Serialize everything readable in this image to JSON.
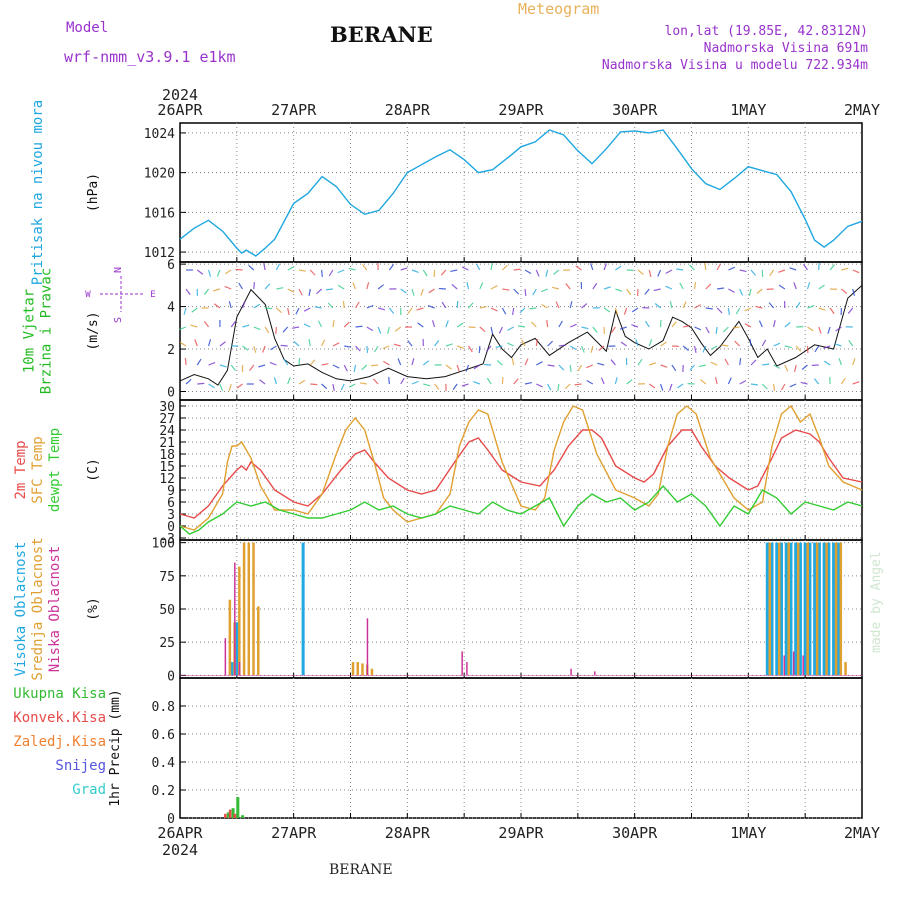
{
  "header": {
    "model_label": "Model",
    "model_name": "wrf-nmm_v3.9.1  e1km",
    "station": "BERANE",
    "meteogram": "Meteogram",
    "lonlat": "lon,lat (19.85E, 42.8312N)",
    "altitude": "Nadmorska Visina 691m",
    "altitude_model": "Nadmorska Visina u modelu 722.934m"
  },
  "footer": {
    "station": "BERANE"
  },
  "credit": "made by Angel",
  "time_axis": {
    "year": "2024",
    "labels": [
      "26APR",
      "27APR",
      "28APR",
      "29APR",
      "30APR",
      "1MAY",
      "2MAY"
    ]
  },
  "compass": {
    "n": "N",
    "s": "S",
    "w": "W",
    "e": "E"
  },
  "colors": {
    "pressure": "#1ea7e0",
    "wind_label": "#22bb22",
    "temp2m": "#e84a4a",
    "sfc": "#e0a030",
    "dew": "#33cc33",
    "cloud_high": "#22a8e0",
    "cloud_mid": "#e0a030",
    "cloud_low": "#cc3399",
    "precip_total": "#33bb33",
    "precip_conv": "#e84a4a",
    "precip_frozen": "#f08030",
    "snow": "#5555dd",
    "grad": "#33cccc",
    "wind_line": "#111111"
  },
  "chart_data": [
    {
      "type": "line",
      "panel": "pressure",
      "ylabel_lines": [
        "Pritisak na nivou mora"
      ],
      "unit": "(hPa)",
      "xlim": [
        0,
        144
      ],
      "ylim": [
        1011,
        1025
      ],
      "yticks": [
        1012,
        1016,
        1020,
        1024
      ],
      "series": [
        {
          "x": [
            0,
            3,
            6,
            9,
            12,
            13,
            14,
            16,
            18,
            20,
            24,
            27,
            30,
            33,
            36,
            39,
            42,
            45,
            48,
            51,
            54,
            57,
            60,
            63,
            66,
            70,
            72,
            75,
            78,
            81,
            84,
            87,
            90,
            93,
            96,
            99,
            102,
            105,
            108,
            111,
            114,
            117,
            120,
            123,
            126,
            129,
            132,
            134,
            136,
            138,
            141,
            144
          ],
          "y": [
            1013.3,
            1014.4,
            1015.2,
            1014.1,
            1012.4,
            1011.9,
            1012.2,
            1011.6,
            1012.4,
            1013.3,
            1016.9,
            1017.9,
            1019.6,
            1018.6,
            1016.8,
            1015.8,
            1016.2,
            1017.9,
            1020.0,
            1020.8,
            1021.6,
            1022.3,
            1021.3,
            1020.0,
            1020.3,
            1021.8,
            1022.6,
            1023.1,
            1024.3,
            1023.8,
            1022.2,
            1020.9,
            1022.4,
            1024.1,
            1024.2,
            1024.0,
            1024.3,
            1022.4,
            1020.4,
            1018.9,
            1018.3,
            1019.4,
            1020.6,
            1020.2,
            1019.8,
            1018.1,
            1015.3,
            1013.2,
            1012.5,
            1013.2,
            1014.6,
            1015.1
          ]
        }
      ]
    },
    {
      "type": "line",
      "panel": "wind",
      "ylabel_lines": [
        "10m Vjetar",
        "Brzina i Pravac"
      ],
      "unit": "(m/s)",
      "xlim": [
        0,
        144
      ],
      "ylim": [
        -0.4,
        6.1
      ],
      "yticks": [
        0,
        2,
        4,
        6
      ],
      "series": [
        {
          "x": [
            0,
            3,
            6,
            8,
            10,
            12,
            15,
            18,
            20,
            22,
            24,
            27,
            30,
            33,
            36,
            40,
            44,
            48,
            52,
            56,
            60,
            64,
            66,
            68,
            70,
            72,
            75,
            78,
            82,
            86,
            90,
            92,
            94,
            96,
            99,
            102,
            104,
            106,
            108,
            110,
            112,
            114,
            116,
            118,
            120,
            122,
            124,
            126,
            130,
            134,
            138,
            141,
            144
          ],
          "y": [
            0.5,
            0.8,
            0.6,
            0.3,
            1.0,
            3.5,
            4.8,
            4.1,
            2.5,
            1.5,
            1.2,
            1.3,
            0.9,
            0.6,
            0.5,
            0.7,
            1.1,
            0.7,
            0.6,
            0.7,
            1.0,
            1.3,
            2.7,
            2.0,
            1.6,
            2.2,
            2.5,
            1.7,
            2.3,
            2.8,
            1.9,
            3.8,
            2.6,
            2.3,
            2.0,
            2.4,
            3.5,
            3.3,
            3.0,
            2.3,
            1.7,
            2.1,
            2.7,
            3.3,
            2.5,
            1.6,
            2.0,
            1.2,
            1.6,
            2.2,
            2.0,
            4.4,
            5.0
          ]
        }
      ]
    },
    {
      "type": "line",
      "panel": "temperature",
      "ylabel_lines": [
        "2m Temp",
        "SFC Temp",
        "dewpt Temp"
      ],
      "unit": "(C)",
      "xlim": [
        0,
        144
      ],
      "ylim": [
        -3.5,
        31.5
      ],
      "yticks": [
        -3,
        0,
        3,
        6,
        9,
        12,
        15,
        18,
        21,
        24,
        27,
        30
      ],
      "series": [
        {
          "name": "2m Temp",
          "x": [
            0,
            3,
            6,
            9,
            12,
            13,
            14,
            15,
            17,
            20,
            24,
            27,
            30,
            34,
            37,
            39,
            41,
            44,
            48,
            51,
            54,
            58,
            61,
            63,
            65,
            68,
            72,
            76,
            79,
            82,
            85,
            87,
            89,
            92,
            96,
            98,
            100,
            103,
            106,
            108,
            110,
            113,
            116,
            120,
            122,
            125,
            127,
            130,
            133,
            135,
            137,
            140,
            144
          ],
          "y": [
            3,
            2,
            5,
            10,
            14,
            15,
            14,
            16,
            14,
            9,
            6,
            5,
            8,
            14,
            18,
            19,
            16,
            12,
            9,
            8,
            9,
            16,
            21,
            22,
            19,
            14,
            11,
            10,
            14,
            20,
            24,
            24,
            22,
            15,
            12,
            11,
            13,
            20,
            24,
            24,
            20,
            15,
            12,
            9,
            10,
            17,
            22,
            24,
            23,
            21,
            17,
            12,
            11
          ]
        },
        {
          "name": "SFC Temp",
          "x": [
            0,
            3,
            6,
            9,
            10,
            11,
            12,
            13,
            15,
            17,
            20,
            24,
            27,
            30,
            33,
            35,
            37,
            39,
            41,
            43,
            45,
            48,
            51,
            54,
            57,
            59,
            61,
            63,
            65,
            68,
            72,
            75,
            77,
            79,
            81,
            83,
            85,
            88,
            92,
            96,
            99,
            101,
            103,
            105,
            107,
            109,
            112,
            117,
            120,
            123,
            125,
            127,
            129,
            131,
            133,
            135,
            137,
            140,
            144
          ],
          "y": [
            0,
            -1,
            2,
            8,
            16,
            20,
            20,
            21,
            17,
            10,
            4,
            4,
            3,
            8,
            18,
            24,
            27,
            24,
            16,
            7,
            4,
            1,
            2,
            3,
            8,
            20,
            26,
            29,
            28,
            16,
            5,
            4,
            7,
            19,
            26,
            30,
            29,
            18,
            9,
            7,
            5,
            8,
            20,
            28,
            30,
            28,
            17,
            7,
            4,
            6,
            20,
            28,
            30,
            26,
            28,
            22,
            15,
            11,
            9
          ]
        },
        {
          "name": "dewpt Temp",
          "x": [
            0,
            2,
            4,
            6,
            9,
            12,
            15,
            18,
            21,
            24,
            27,
            30,
            33,
            36,
            39,
            42,
            45,
            48,
            51,
            54,
            57,
            60,
            63,
            66,
            69,
            72,
            75,
            78,
            81,
            84,
            87,
            90,
            93,
            96,
            99,
            102,
            105,
            108,
            111,
            114,
            117,
            120,
            123,
            126,
            129,
            132,
            135,
            138,
            141,
            144
          ],
          "y": [
            0,
            -2,
            -1,
            1,
            3,
            6,
            5,
            6,
            4,
            3,
            2,
            2,
            3,
            4,
            6,
            4,
            5,
            3,
            2,
            3,
            5,
            4,
            3,
            6,
            4,
            3,
            5,
            7,
            0,
            5,
            8,
            6,
            7,
            4,
            6,
            10,
            6,
            8,
            5,
            0,
            5,
            3,
            9,
            7,
            3,
            6,
            5,
            4,
            6,
            5
          ]
        }
      ]
    },
    {
      "type": "bar",
      "panel": "clouds",
      "ylabel_lines": [
        "Visoka Oblacnost",
        "Srednja Oblacnost",
        "Niska Oblacnost"
      ],
      "unit": "(%)",
      "xlim": [
        0,
        144
      ],
      "ylim": [
        -2,
        102
      ],
      "yticks": [
        0,
        25,
        50,
        75,
        100
      ],
      "series": [
        {
          "name": "Visoka Oblacnost",
          "x": [
            11,
            12,
            26,
            124,
            125,
            126,
            127,
            128,
            129,
            130,
            131,
            132,
            133,
            134,
            135,
            136,
            137,
            138,
            139
          ],
          "y": [
            10,
            40,
            100,
            100,
            100,
            100,
            100,
            100,
            100,
            100,
            100,
            100,
            100,
            100,
            100,
            100,
            100,
            100,
            100
          ]
        },
        {
          "name": "Srednja Oblacnost",
          "x": [
            10,
            11,
            12,
            13,
            14,
            15,
            16,
            36,
            37,
            38,
            39,
            40,
            124,
            126,
            128,
            130,
            132,
            134,
            136,
            138,
            139,
            140
          ],
          "y": [
            57,
            40,
            82,
            100,
            100,
            100,
            52,
            10,
            10,
            9,
            8,
            5,
            100,
            100,
            100,
            100,
            100,
            100,
            100,
            100,
            100,
            10
          ]
        },
        {
          "name": "Niska Oblacnost",
          "x": [
            10,
            12,
            13,
            40,
            60,
            61,
            83,
            88,
            128,
            130,
            132
          ],
          "y": [
            28,
            85,
            10,
            43,
            18,
            10,
            5,
            3,
            15,
            18,
            15
          ]
        }
      ]
    },
    {
      "type": "bar",
      "panel": "precip",
      "ylabel_lines": [
        "Ukupna Kisa",
        "Konvek.Kisa",
        "Zaledj.Kisa",
        "Snijeg",
        "Grad"
      ],
      "unit": "1hr Precip (mm)",
      "xlim": [
        0,
        144
      ],
      "ylim": [
        0,
        1.0
      ],
      "yticks": [
        0,
        0.2,
        0.4,
        0.6,
        0.8
      ],
      "series": [
        {
          "name": "Ukupna Kisa",
          "x": [
            10,
            11,
            12,
            13
          ],
          "y": [
            0.04,
            0.07,
            0.15,
            0.02
          ]
        },
        {
          "name": "Konvek.Kisa",
          "x": [
            10,
            11,
            12
          ],
          "y": [
            0.03,
            0.06,
            0.03
          ]
        }
      ]
    }
  ]
}
